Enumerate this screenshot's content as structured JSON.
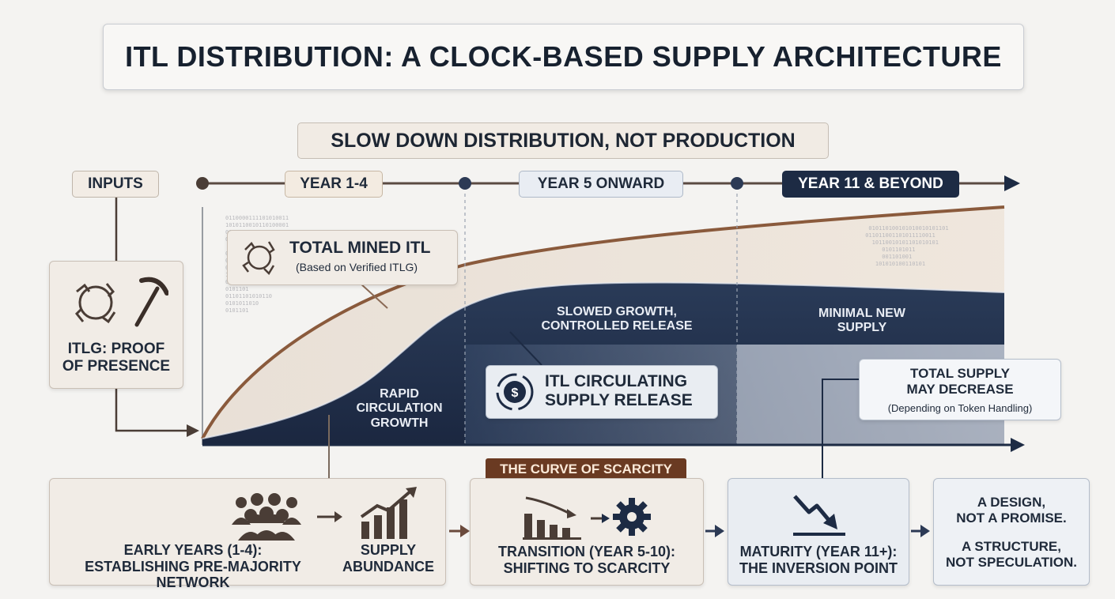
{
  "title": "ITL DISTRIBUTION: A CLOCK-BASED SUPPLY ARCHITECTURE",
  "subtitle": "SLOW DOWN DISTRIBUTION, NOT PRODUCTION",
  "inputs": {
    "label": "INPUTS",
    "card_label_1": "ITLG: PROOF",
    "card_label_2": "OF PRESENCE"
  },
  "timeline": {
    "phase1": "YEAR 1-4",
    "phase2": "YEAR 5 ONWARD",
    "phase3": "YEAR 11 & BEYOND"
  },
  "chart": {
    "total_mined_title": "TOTAL MINED ITL",
    "total_mined_sub": "(Based on Verified ITLG)",
    "rapid_1": "RAPID",
    "rapid_2": "CIRCULATION",
    "rapid_3": "GROWTH",
    "slowed_1": "SLOWED GROWTH,",
    "slowed_2": "CONTROLLED RELEASE",
    "minimal_1": "MINIMAL NEW",
    "minimal_2": "SUPPLY",
    "circ_1": "ITL CIRCULATING",
    "circ_2": "SUPPLY RELEASE",
    "decrease_1": "TOTAL SUPPLY",
    "decrease_2": "MAY DECREASE",
    "decrease_sub": "(Depending on Token Handling)"
  },
  "stages": {
    "early_line1": "EARLY YEARS (1-4):",
    "early_line2": "ESTABLISHING PRE-MAJORITY NETWORK",
    "supply_line1": "SUPPLY",
    "supply_line2": "ABUNDANCE",
    "curve_tag": "THE CURVE OF SCARCITY",
    "transition_line1": "TRANSITION (YEAR 5-10):",
    "transition_line2": "SHIFTING TO SCARCITY",
    "maturity_line1": "MATURITY (YEAR 11+):",
    "maturity_line2": "THE INVERSION POINT",
    "design_line1": "A DESIGN,",
    "design_line2": "NOT A PROMISE.",
    "structure_line1": "A STRUCTURE,",
    "structure_line2": "NOT SPECULATION."
  },
  "colors": {
    "navy": "#1d2b44",
    "beige": "#f1ece6",
    "copper": "#8a5a3c"
  }
}
